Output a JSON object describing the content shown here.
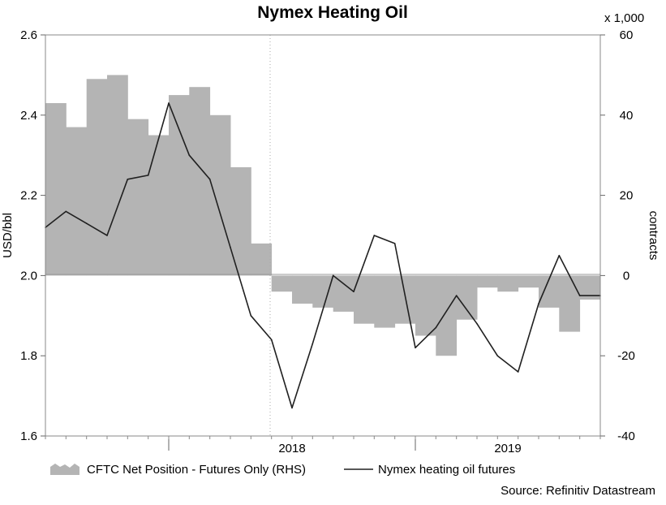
{
  "chart_data": {
    "type": "line",
    "title": "Nymex Heating Oil",
    "ylabel_left": "USD/bbl",
    "ylabel_right": "contracts",
    "right_axis_multiplier": "x 1,000",
    "left_axis": {
      "min": 1.6,
      "max": 2.6,
      "ticks": [
        "1.6",
        "1.8",
        "2.0",
        "2.2",
        "2.4",
        "2.6"
      ]
    },
    "right_axis": {
      "min": -40,
      "max": 60,
      "ticks": [
        "-40",
        "-20",
        "0",
        "20",
        "40",
        "60"
      ]
    },
    "x_ticks": [
      "2018",
      "2019"
    ],
    "x_range": [
      "2017-07",
      "2019-10"
    ],
    "grid": "dotted vertical line at mid-2018 boundary; dotted top border",
    "source": "Source: Refinitiv Datastream",
    "series": [
      {
        "name": "CFTC Net Position - Futures Only (RHS)",
        "style": "area",
        "axis": "right",
        "color": "#b4b4b4",
        "x": [
          "2017-07",
          "2017-08",
          "2017-09",
          "2017-10",
          "2017-11",
          "2017-12",
          "2018-01",
          "2018-02",
          "2018-03",
          "2018-04",
          "2018-05",
          "2018-06",
          "2018-07",
          "2018-08",
          "2018-09",
          "2018-10",
          "2018-11",
          "2018-12",
          "2019-01",
          "2019-02",
          "2019-03",
          "2019-04",
          "2019-05",
          "2019-06",
          "2019-07",
          "2019-08",
          "2019-09",
          "2019-10"
        ],
        "values": [
          43,
          37,
          49,
          50,
          39,
          35,
          45,
          47,
          40,
          27,
          8,
          -4,
          -7,
          -8,
          -9,
          -12,
          -13,
          -12,
          -15,
          -20,
          -11,
          -3,
          -4,
          -3,
          -8,
          -14,
          -6,
          -5
        ]
      },
      {
        "name": "Nymex heating oil futures",
        "style": "line",
        "axis": "left",
        "color": "#202020",
        "x": [
          "2017-07",
          "2017-08",
          "2017-09",
          "2017-10",
          "2017-11",
          "2017-12",
          "2018-01",
          "2018-02",
          "2018-03",
          "2018-04",
          "2018-05",
          "2018-06",
          "2018-07",
          "2018-08",
          "2018-09",
          "2018-10",
          "2018-11",
          "2018-12",
          "2019-01",
          "2019-02",
          "2019-03",
          "2019-04",
          "2019-05",
          "2019-06",
          "2019-07",
          "2019-08",
          "2019-09",
          "2019-10"
        ],
        "values": [
          2.12,
          2.16,
          2.13,
          2.1,
          2.24,
          2.25,
          2.43,
          2.3,
          2.24,
          2.07,
          1.9,
          1.84,
          1.67,
          1.83,
          2.0,
          1.96,
          2.1,
          2.08,
          1.82,
          1.87,
          1.95,
          1.88,
          1.8,
          1.76,
          1.93,
          2.05,
          1.95,
          1.95
        ]
      }
    ]
  }
}
